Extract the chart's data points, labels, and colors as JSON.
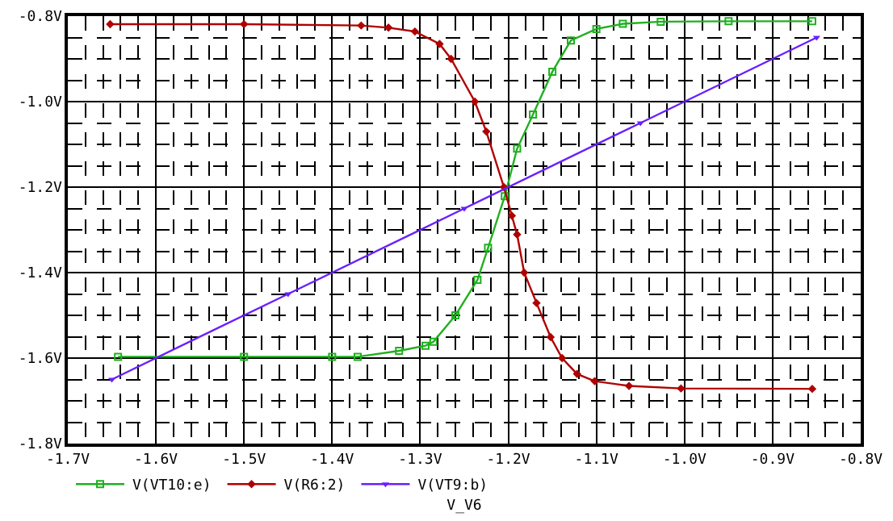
{
  "chart_data": {
    "type": "line",
    "xlabel": "V_V6",
    "xlim": [
      -1.7,
      -0.8
    ],
    "ylim": [
      -1.8,
      -0.8
    ],
    "xticks": [
      {
        "value": -1.7,
        "label": "-1.7V"
      },
      {
        "value": -1.6,
        "label": "-1.6V"
      },
      {
        "value": -1.5,
        "label": "-1.5V"
      },
      {
        "value": -1.4,
        "label": "-1.4V"
      },
      {
        "value": -1.3,
        "label": "-1.3V"
      },
      {
        "value": -1.2,
        "label": "-1.2V"
      },
      {
        "value": -1.1,
        "label": "-1.1V"
      },
      {
        "value": -1.0,
        "label": "-1.0V"
      },
      {
        "value": -0.9,
        "label": "-0.9V"
      },
      {
        "value": -0.8,
        "label": "-0.8V"
      }
    ],
    "yticks": [
      {
        "value": -1.8,
        "label": "-1.8V"
      },
      {
        "value": -1.6,
        "label": "-1.6V"
      },
      {
        "value": -1.4,
        "label": "-1.4V"
      },
      {
        "value": -1.2,
        "label": "-1.2V"
      },
      {
        "value": -1.0,
        "label": "-1.0V"
      },
      {
        "value": -0.8,
        "label": "-0.8V"
      }
    ],
    "grid": true,
    "legend": "bottom left",
    "line_style": "solid",
    "series": [
      {
        "name": "V(VT10:e)",
        "color": "#1fb01f",
        "marker": "square",
        "x": [
          -1.643,
          -1.5,
          -1.4,
          -1.371,
          -1.324,
          -1.294,
          -1.285,
          -1.26,
          -1.235,
          -1.223,
          -1.204,
          -1.19,
          -1.172,
          -1.15,
          -1.129,
          -1.1,
          -1.07,
          -1.027,
          -0.95,
          -0.855
        ],
        "values": [
          -1.597,
          -1.597,
          -1.597,
          -1.597,
          -1.583,
          -1.571,
          -1.562,
          -1.5,
          -1.417,
          -1.342,
          -1.221,
          -1.11,
          -1.03,
          -0.93,
          -0.857,
          -0.83,
          -0.818,
          -0.813,
          -0.812,
          -0.812
        ]
      },
      {
        "name": "V(R6:2)",
        "color": "#b00000",
        "marker": "diamond",
        "x": [
          -1.652,
          -1.5,
          -1.367,
          -1.336,
          -1.306,
          -1.278,
          -1.265,
          -1.238,
          -1.225,
          -1.205,
          -1.196,
          -1.19,
          -1.182,
          -1.168,
          -1.152,
          -1.139,
          -1.122,
          -1.102,
          -1.063,
          -1.004,
          -0.855
        ],
        "values": [
          -0.819,
          -0.819,
          -0.822,
          -0.827,
          -0.836,
          -0.865,
          -0.9,
          -1.0,
          -1.07,
          -1.2,
          -1.267,
          -1.311,
          -1.4,
          -1.471,
          -1.551,
          -1.6,
          -1.637,
          -1.654,
          -1.665,
          -1.671,
          -1.672
        ]
      },
      {
        "name": "V(VT9:b)",
        "color": "#6a1fff",
        "marker": "triangle",
        "x": [
          -1.65,
          -1.45,
          -1.25,
          -1.05,
          -0.85
        ],
        "values": [
          -1.65,
          -1.45,
          -1.25,
          -1.05,
          -0.85
        ]
      }
    ]
  }
}
